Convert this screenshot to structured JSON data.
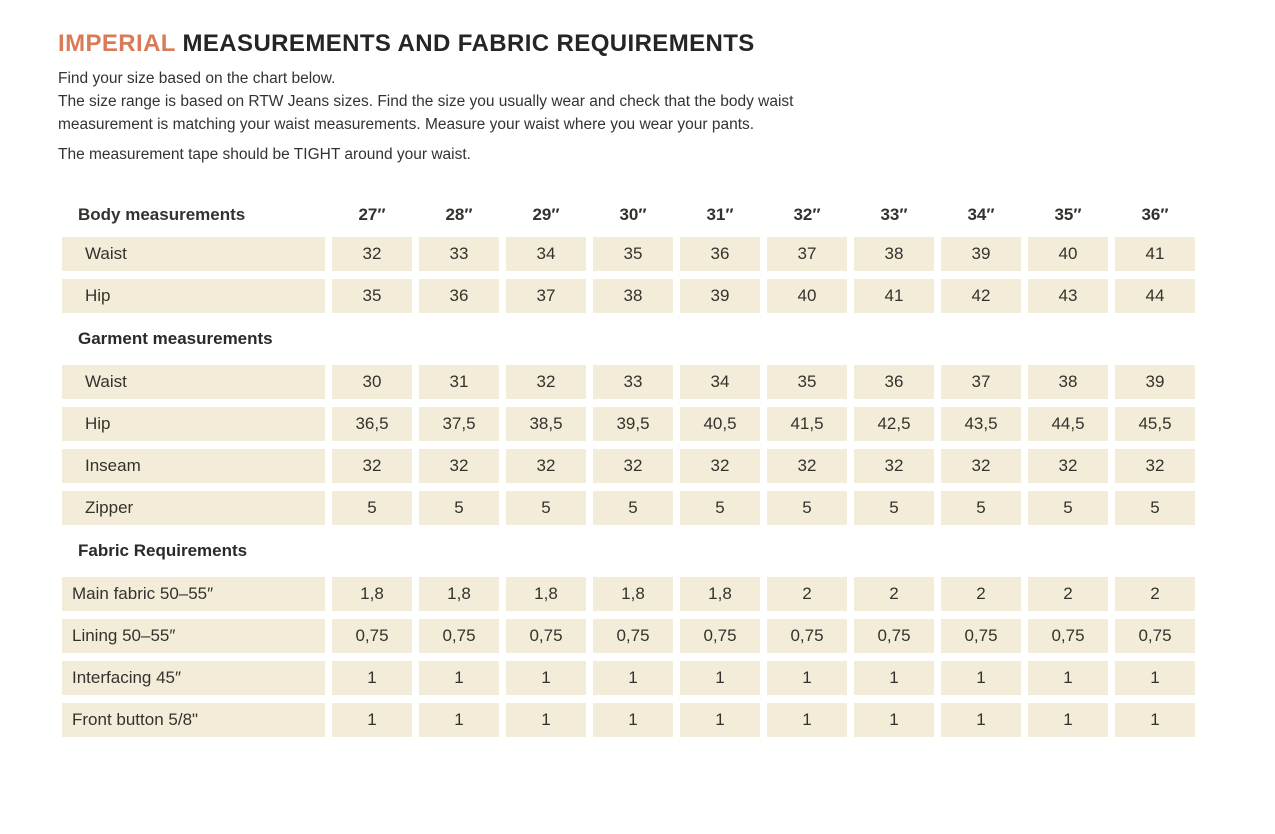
{
  "colors": {
    "accent": "#d97b58",
    "cell_bg": "#f3ecd9",
    "ink": "#2e2d2b"
  },
  "header": {
    "title_highlight": "IMPERIAL",
    "title_rest": " MEASUREMENTS AND FABRIC REQUIREMENTS"
  },
  "intro": {
    "line1": "Find your size based on the chart below.",
    "line2": "The size range is based on RTW Jeans sizes. Find the size you usually wear and check that the body waist measurement is matching your waist measurements. Measure your waist where you wear your pants.",
    "line3": "The measurement tape should be TIGHT around your waist."
  },
  "table": {
    "header_row": {
      "label": "Body measurements",
      "sizes": [
        "27″",
        "28″",
        "29″",
        "30″",
        "31″",
        "32″",
        "33″",
        "34″",
        "35″",
        "36″"
      ]
    },
    "sections": [
      {
        "id": "body",
        "title": "",
        "rows": [
          {
            "label": "Waist",
            "values": [
              "32",
              "33",
              "34",
              "35",
              "36",
              "37",
              "38",
              "39",
              "40",
              "41"
            ]
          },
          {
            "label": "Hip",
            "values": [
              "35",
              "36",
              "37",
              "38",
              "39",
              "40",
              "41",
              "42",
              "43",
              "44"
            ]
          }
        ]
      },
      {
        "id": "garment",
        "title": "Garment measurements",
        "rows": [
          {
            "label": "Waist",
            "values": [
              "30",
              "31",
              "32",
              "33",
              "34",
              "35",
              "36",
              "37",
              "38",
              "39"
            ]
          },
          {
            "label": "Hip",
            "values": [
              "36,5",
              "37,5",
              "38,5",
              "39,5",
              "40,5",
              "41,5",
              "42,5",
              "43,5",
              "44,5",
              "45,5"
            ]
          },
          {
            "label": "Inseam",
            "values": [
              "32",
              "32",
              "32",
              "32",
              "32",
              "32",
              "32",
              "32",
              "32",
              "32"
            ]
          },
          {
            "label": "Zipper",
            "values": [
              "5",
              "5",
              "5",
              "5",
              "5",
              "5",
              "5",
              "5",
              "5",
              "5"
            ]
          }
        ]
      },
      {
        "id": "fabric",
        "title": "Fabric Requirements",
        "rows": [
          {
            "label": "Main fabric 50–55″",
            "values": [
              "1,8",
              "1,8",
              "1,8",
              "1,8",
              "1,8",
              "2",
              "2",
              "2",
              "2",
              "2"
            ]
          },
          {
            "label": "Lining 50–55″",
            "values": [
              "0,75",
              "0,75",
              "0,75",
              "0,75",
              "0,75",
              "0,75",
              "0,75",
              "0,75",
              "0,75",
              "0,75"
            ]
          },
          {
            "label": "Interfacing 45″",
            "values": [
              "1",
              "1",
              "1",
              "1",
              "1",
              "1",
              "1",
              "1",
              "1",
              "1"
            ]
          },
          {
            "label": "Front button 5/8\"",
            "values": [
              "1",
              "1",
              "1",
              "1",
              "1",
              "1",
              "1",
              "1",
              "1",
              "1"
            ]
          }
        ]
      }
    ]
  }
}
